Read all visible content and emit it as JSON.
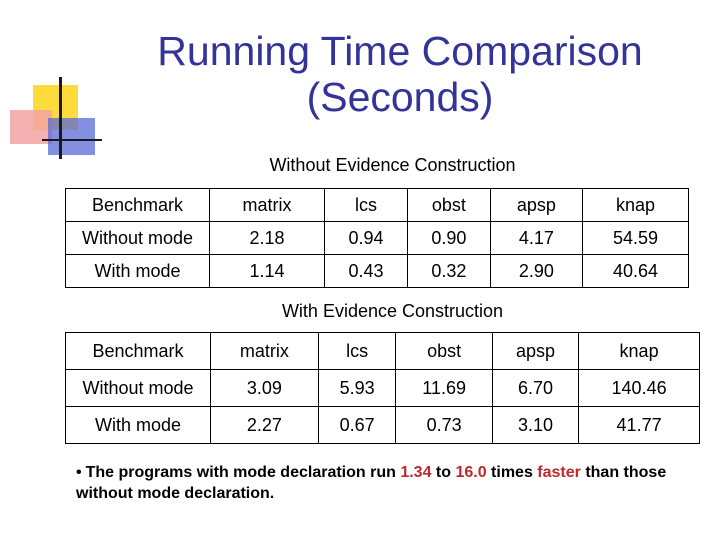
{
  "slide": {
    "title_line1": "Running Time Comparison",
    "title_line2": "(Seconds)"
  },
  "tables": [
    {
      "caption": "Without Evidence Construction",
      "header": [
        "Benchmark",
        "matrix",
        "lcs",
        "obst",
        "apsp",
        "knap"
      ],
      "rows": [
        [
          "Without mode",
          "2.18",
          "0.94",
          "0.90",
          "4.17",
          "54.59"
        ],
        [
          "With mode",
          "1.14",
          "0.43",
          "0.32",
          "2.90",
          "40.64"
        ]
      ]
    },
    {
      "caption": "With Evidence Construction",
      "header": [
        "Benchmark",
        "matrix",
        "lcs",
        "obst",
        "apsp",
        "knap"
      ],
      "rows": [
        [
          "Without mode",
          "3.09",
          "5.93",
          "11.69",
          "6.70",
          "140.46"
        ],
        [
          "With mode",
          "2.27",
          "0.67",
          "0.73",
          "3.10",
          "41.77"
        ]
      ]
    }
  ],
  "bullet": {
    "marker": "•",
    "part1": "The programs with mode declaration run ",
    "low": "1.34",
    "mid": " to ",
    "high": "16.0",
    "part2": " times ",
    "faster": "faster",
    "part3": " than those without mode declaration."
  },
  "colors": {
    "title": "#333399",
    "highlight": "#c0282d"
  }
}
